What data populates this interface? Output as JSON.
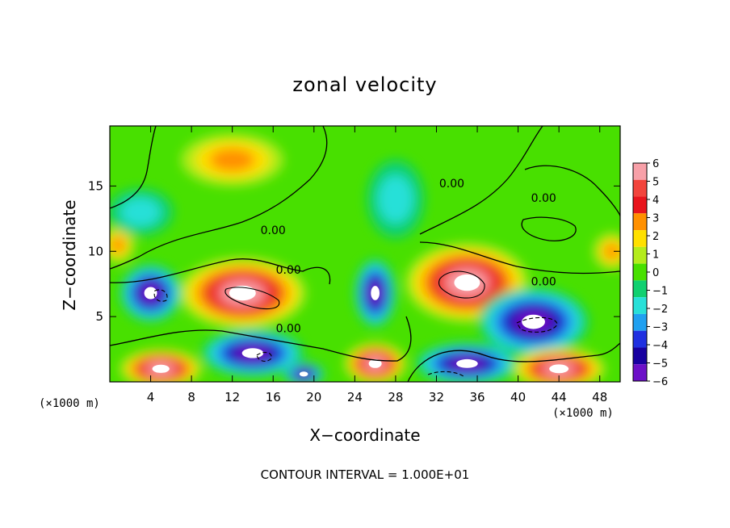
{
  "chart_data": {
    "type": "heatmap",
    "title": "zonal velocity",
    "xlabel": "X−coordinate",
    "ylabel": "Z−coordinate",
    "x_unit_left": "(×1000 m)",
    "x_unit_right": "(×1000 m)",
    "xlim": [
      0,
      50
    ],
    "ylim": [
      0,
      19.6
    ],
    "xticks": [
      4,
      8,
      12,
      16,
      20,
      24,
      28,
      32,
      36,
      40,
      44,
      48
    ],
    "yticks": [
      5,
      10,
      15
    ],
    "colorbar": {
      "levels": [
        6,
        5,
        4,
        3,
        2,
        1,
        0,
        -1,
        -2,
        -3,
        -4,
        -5,
        -6
      ],
      "labels": [
        "6",
        "5",
        "4",
        "3",
        "2",
        "1",
        "0",
        "−1",
        "−2",
        "−3",
        "−4",
        "−5",
        "−6"
      ],
      "colors": [
        "#f7a0a8",
        "#f2443c",
        "#e8141c",
        "#ff9000",
        "#ffe000",
        "#b4ec1c",
        "#48e000",
        "#10d070",
        "#28e0d8",
        "#20a0f0",
        "#2030e0",
        "#1800a0",
        "#6c10c8"
      ]
    },
    "contour_labels": [
      {
        "text": "0.00",
        "x": 16.0,
        "y": 11.3
      },
      {
        "text": "0.00",
        "x": 17.5,
        "y": 8.3
      },
      {
        "text": "0.00",
        "x": 17.5,
        "y": 3.8
      },
      {
        "text": "0.00",
        "x": 33.5,
        "y": 14.9
      },
      {
        "text": "0.00",
        "x": 42.5,
        "y": 13.8
      },
      {
        "text": "0.00",
        "x": 42.5,
        "y": 7.4
      }
    ],
    "features": [
      {
        "value": 3.0,
        "x": 12.0,
        "y": 17.0,
        "rx": 5.0,
        "ry": 2.0
      },
      {
        "value": 2.5,
        "x": 0.8,
        "y": 10.5,
        "rx": 1.6,
        "ry": 1.4
      },
      {
        "value": 2.5,
        "x": 49.2,
        "y": 10.0,
        "rx": 1.8,
        "ry": 1.4
      },
      {
        "value": -2.0,
        "x": 28.0,
        "y": 14.0,
        "rx": 2.8,
        "ry": 3.0
      },
      {
        "value": -2.0,
        "x": 3.0,
        "y": 13.0,
        "rx": 3.2,
        "ry": 1.8
      },
      {
        "value": 6.5,
        "x": 13.0,
        "y": 6.8,
        "rx": 6.2,
        "ry": 2.7
      },
      {
        "value": 6.5,
        "x": 35.0,
        "y": 7.6,
        "rx": 6.0,
        "ry": 3.0
      },
      {
        "value": -6.5,
        "x": 4.0,
        "y": 6.8,
        "rx": 3.0,
        "ry": 2.2
      },
      {
        "value": -6.5,
        "x": 26.0,
        "y": 6.8,
        "rx": 2.0,
        "ry": 2.6
      },
      {
        "value": -6.5,
        "x": 41.5,
        "y": 4.6,
        "rx": 5.4,
        "ry": 2.6
      },
      {
        "value": -6.5,
        "x": 14.0,
        "y": 2.2,
        "rx": 5.0,
        "ry": 1.8
      },
      {
        "value": -6.5,
        "x": 35.0,
        "y": 1.4,
        "rx": 5.0,
        "ry": 1.6
      },
      {
        "value": -6.5,
        "x": 19.0,
        "y": 0.6,
        "rx": 2.0,
        "ry": 0.9
      },
      {
        "value": 6.5,
        "x": 5.0,
        "y": 1.0,
        "rx": 4.0,
        "ry": 1.5
      },
      {
        "value": 6.5,
        "x": 26.0,
        "y": 1.4,
        "rx": 3.0,
        "ry": 1.6
      },
      {
        "value": 6.5,
        "x": 44.0,
        "y": 1.0,
        "rx": 4.5,
        "ry": 1.6
      }
    ],
    "note": "CONTOUR INTERVAL = 1.000E+01"
  }
}
